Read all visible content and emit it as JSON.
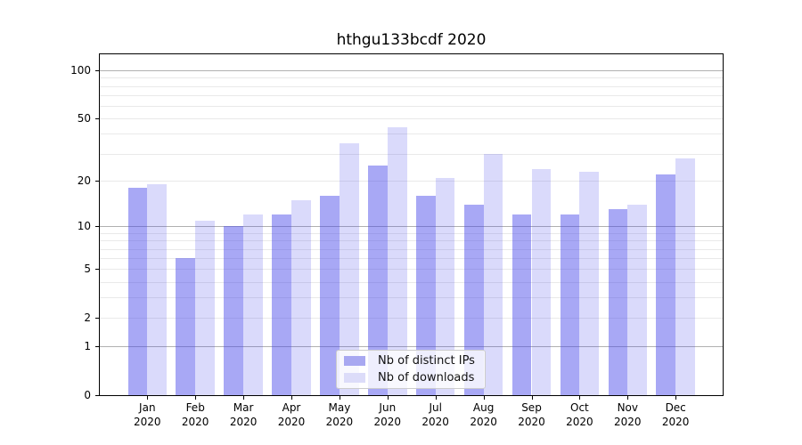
{
  "chart_data": {
    "type": "bar",
    "title": "hthgu133bcdf 2020",
    "categories": [
      "Jan",
      "Feb",
      "Mar",
      "Apr",
      "May",
      "Jun",
      "Jul",
      "Aug",
      "Sep",
      "Oct",
      "Nov",
      "Dec"
    ],
    "category_year": "2020",
    "series": [
      {
        "name": "Nb of distinct IPs",
        "values": [
          18,
          6,
          10,
          12,
          16,
          25,
          16,
          14,
          12,
          12,
          13,
          22
        ],
        "color": "#a8a8f1",
        "fill": "rgba(70,70,234,0.47)"
      },
      {
        "name": "Nb of downloads",
        "values": [
          19,
          11,
          12,
          15,
          35,
          44,
          21,
          30,
          24,
          23,
          14,
          28
        ],
        "color": "#dcdcf9",
        "fill": "rgba(70,70,234,0.20)"
      }
    ],
    "yscale": "log1p",
    "ylim": [
      0,
      125
    ],
    "yticks": [
      100,
      50,
      20,
      10,
      5,
      2,
      1,
      0
    ],
    "grid_major": [
      1,
      10,
      100
    ],
    "grid_minor": [
      2,
      3,
      4,
      5,
      6,
      7,
      8,
      9,
      20,
      30,
      40,
      50,
      60,
      70,
      80,
      90
    ],
    "legend_position": "lower center",
    "colors": {
      "grid_major": "#b0b0b0",
      "grid_minor": "#e9e9e9",
      "axis": "#000000",
      "background": "#ffffff"
    }
  }
}
